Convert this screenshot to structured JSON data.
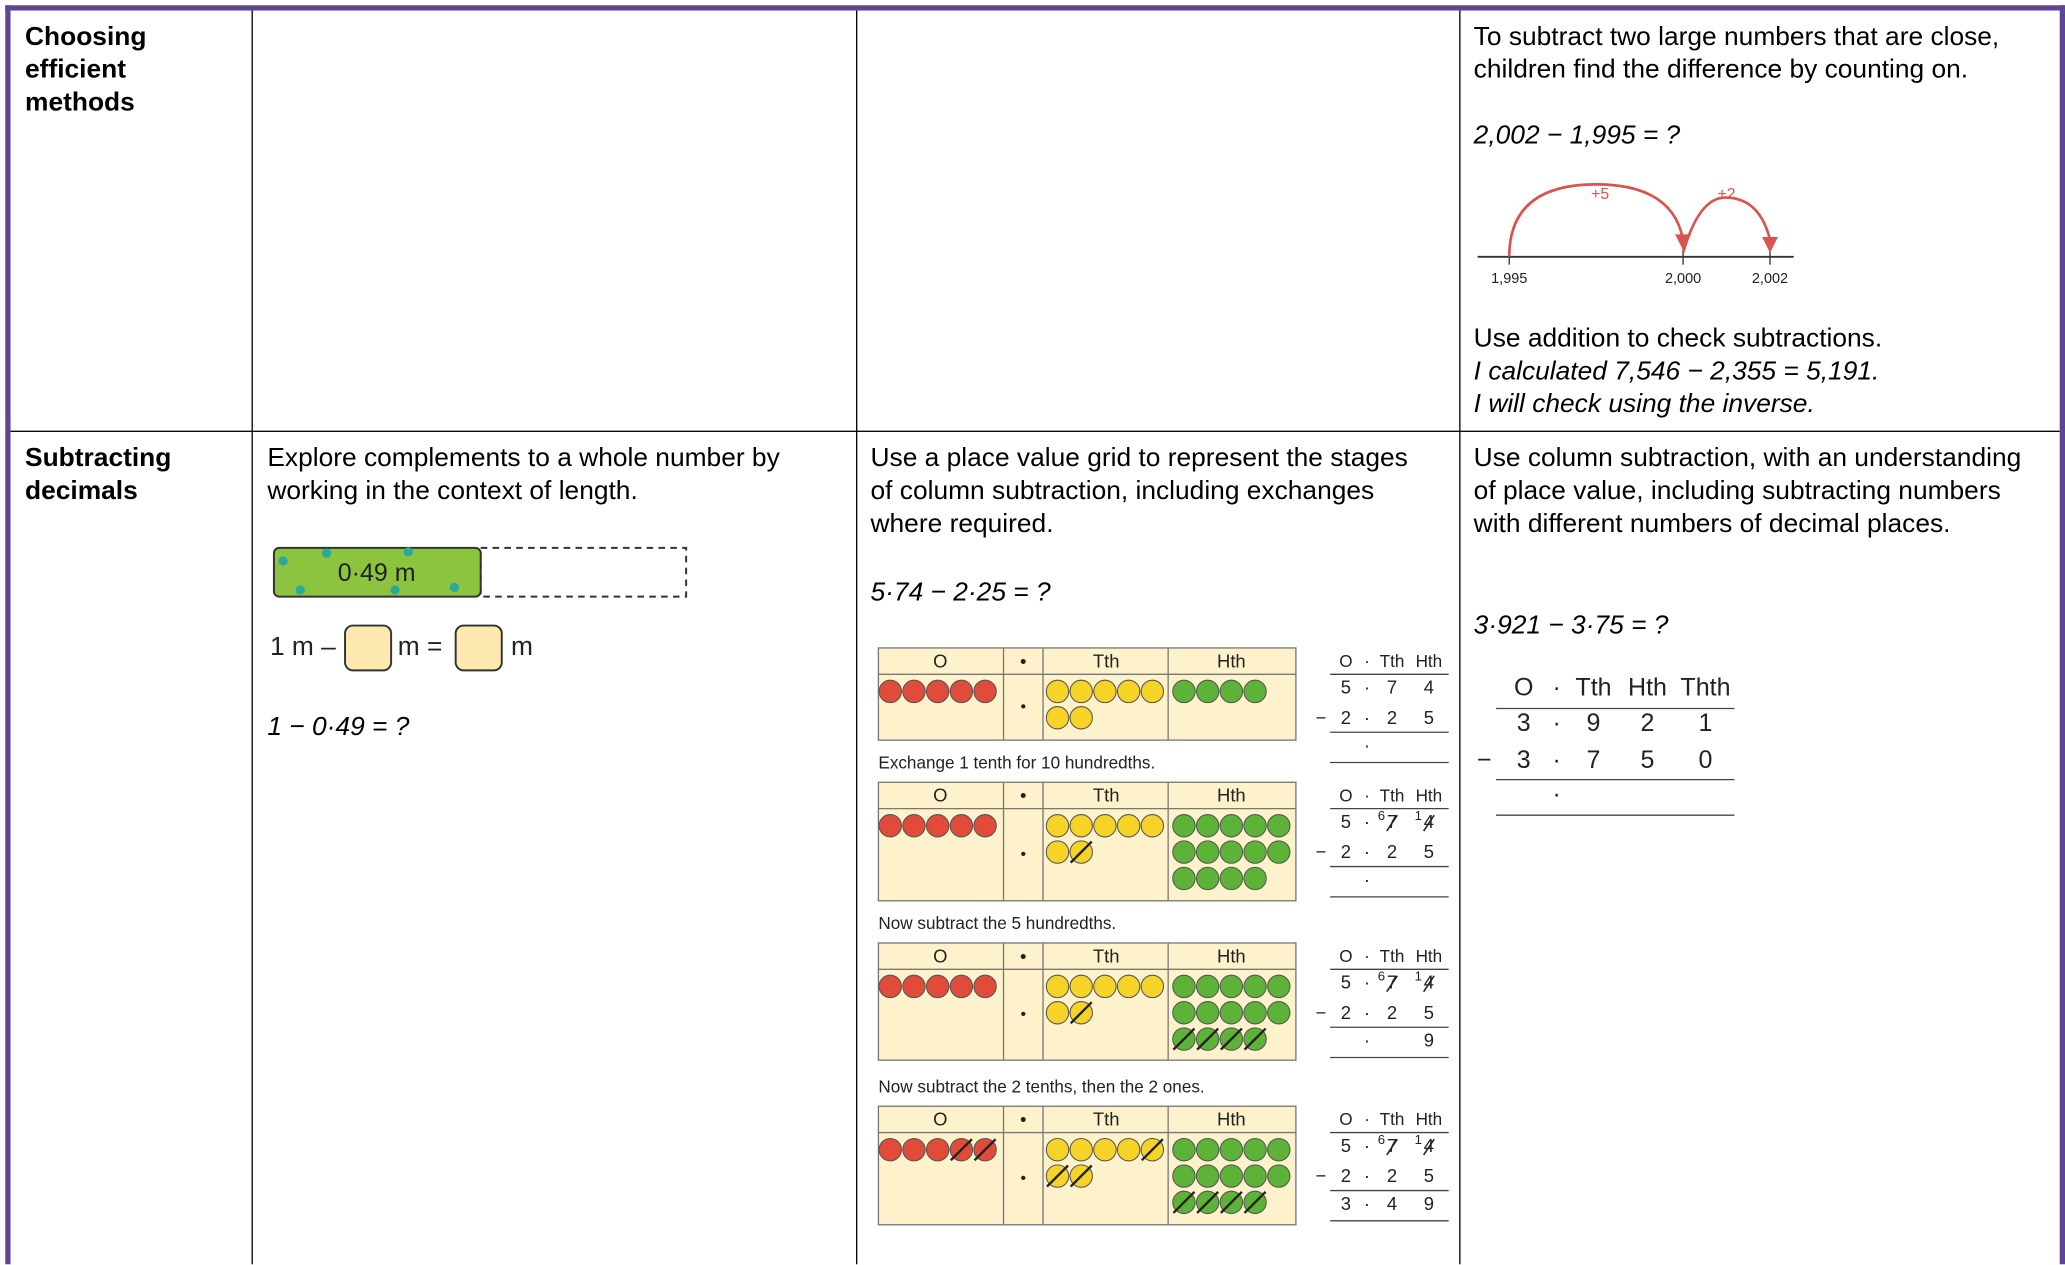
{
  "table": {
    "rows": [
      {
        "heading": "Choosing efficient methods",
        "col3": {
          "text": "To subtract two large numbers that are close, children find the difference by counting on.",
          "question": "2,002 − 1,995 = ?",
          "number_line": {
            "jumps": [
              "+5",
              "+2"
            ],
            "labels": [
              "1,995",
              "2,000",
              "2,002"
            ]
          },
          "text2": "Use addition to check subtractions.",
          "example": [
            "I calculated 7,546 − 2,355 = 5,191.",
            "I will check using the inverse."
          ]
        }
      },
      {
        "heading": "Subtracting decimals",
        "col1": {
          "text": "Explore complements to a whole number by working in the context of length.",
          "bar_label": "0·49 m",
          "equation": [
            "1 m –",
            "m =",
            "m"
          ],
          "question": "1 − 0·49 = ?"
        },
        "col2": {
          "text": "Use a place value grid to represent the stages of column subtraction, including exchanges where required.",
          "question": "5·74 − 2·25 = ?",
          "grid_headers": [
            "O",
            "•",
            "Tth",
            "Hth"
          ],
          "column_headers": [
            "O",
            "·",
            "Tth",
            "Hth"
          ],
          "minus": "−",
          "point": "·",
          "stages": [
            {
              "top": [
                "5",
                "7",
                "4"
              ],
              "exchange": null,
              "bottom": [
                "2",
                "2",
                "5"
              ],
              "result": null
            },
            {
              "caption": "Exchange 1 tenth for 10 hundredths.",
              "top": [
                "5",
                "7",
                "4"
              ],
              "exchange": [
                null,
                "6",
                "1"
              ],
              "bottom": [
                "2",
                "2",
                "5"
              ],
              "result": null
            },
            {
              "caption": "Now subtract the 5 hundredths.",
              "top": [
                "5",
                "7",
                "4"
              ],
              "exchange": [
                null,
                "6",
                "1"
              ],
              "bottom": [
                "2",
                "2",
                "5"
              ],
              "result": [
                null,
                null,
                "9"
              ]
            },
            {
              "caption": "Now subtract the 2 tenths, then the 2 ones.",
              "top": [
                "5",
                "7",
                "4"
              ],
              "exchange": [
                null,
                "6",
                "1"
              ],
              "bottom": [
                "2",
                "2",
                "5"
              ],
              "result": [
                "3",
                "4",
                "9"
              ]
            }
          ]
        },
        "col3": {
          "text": "Use column subtraction, with an understanding of place value, including subtracting numbers with different numbers of decimal places.",
          "question": "3·921 − 3·75 = ?",
          "column_headers": [
            "O",
            "·",
            "Tth",
            "Hth",
            "Thth"
          ],
          "top": [
            "3",
            "9",
            "2",
            "1"
          ],
          "bottom": [
            "3",
            "7",
            "5",
            "0"
          ],
          "minus": "−",
          "point": "·"
        }
      }
    ]
  }
}
